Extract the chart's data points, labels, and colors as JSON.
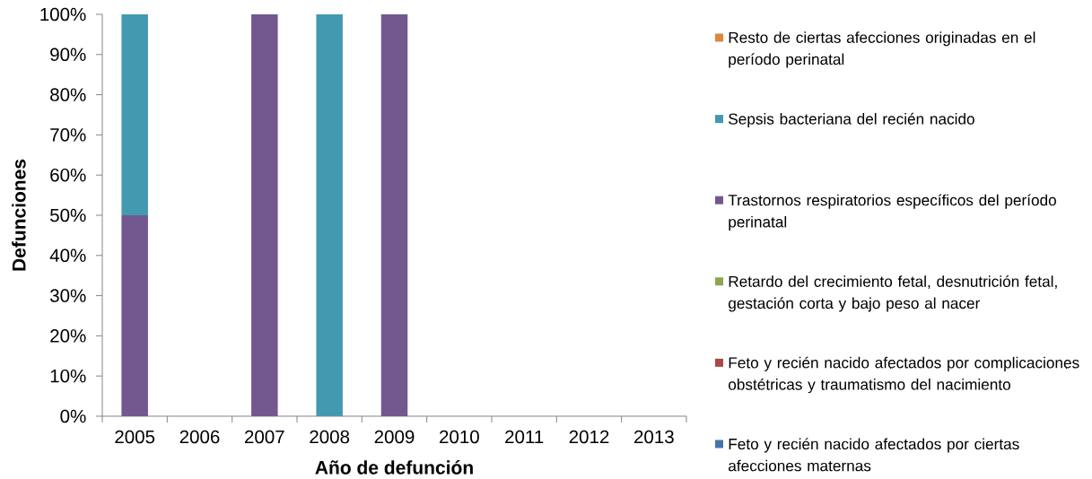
{
  "chart_data": {
    "type": "bar",
    "stacked": true,
    "xlabel": "Año de defunción",
    "ylabel": "Defunciones",
    "categories": [
      "2005",
      "2006",
      "2007",
      "2008",
      "2009",
      "2010",
      "2011",
      "2012",
      "2013"
    ],
    "series": [
      {
        "name": "Feto y recién nacido afectados por ciertas afecciones maternas",
        "color": "#4673A8",
        "values": [
          0,
          0,
          0,
          0,
          0,
          0,
          0,
          0,
          0
        ]
      },
      {
        "name": "Feto y recién nacido afectados por complicaciones obstétricas y traumatismo del nacimiento",
        "color": "#AB4745",
        "values": [
          0,
          0,
          0,
          0,
          0,
          0,
          0,
          0,
          0
        ]
      },
      {
        "name": "Retardo del crecimiento fetal, desnutrición fetal, gestación corta y bajo peso al nacer",
        "color": "#8AA64F",
        "values": [
          0,
          0,
          0,
          0,
          0,
          0,
          0,
          0,
          0
        ]
      },
      {
        "name": "Trastornos respiratorios específicos del período perinatal",
        "color": "#72588F",
        "values": [
          50,
          0,
          100,
          0,
          100,
          0,
          0,
          0,
          0
        ]
      },
      {
        "name": "Sepsis bacteriana del recién nacido",
        "color": "#4399B0",
        "values": [
          50,
          0,
          0,
          100,
          0,
          0,
          0,
          0,
          0
        ]
      },
      {
        "name": "Resto de ciertas afecciones originadas en el período perinatal",
        "color": "#DC863E",
        "values": [
          0,
          0,
          0,
          0,
          0,
          0,
          0,
          0,
          0
        ]
      }
    ],
    "ylim": [
      0,
      100
    ],
    "yticks": [
      {
        "value": 0,
        "label": "0%"
      },
      {
        "value": 10,
        "label": "10%"
      },
      {
        "value": 20,
        "label": "20%"
      },
      {
        "value": 30,
        "label": "30%"
      },
      {
        "value": 40,
        "label": "40%"
      },
      {
        "value": 50,
        "label": "50%"
      },
      {
        "value": 60,
        "label": "60%"
      },
      {
        "value": 70,
        "label": "70%"
      },
      {
        "value": 80,
        "label": "80%"
      },
      {
        "value": 90,
        "label": "90%"
      },
      {
        "value": 100,
        "label": "100%"
      }
    ],
    "legend": "right"
  }
}
